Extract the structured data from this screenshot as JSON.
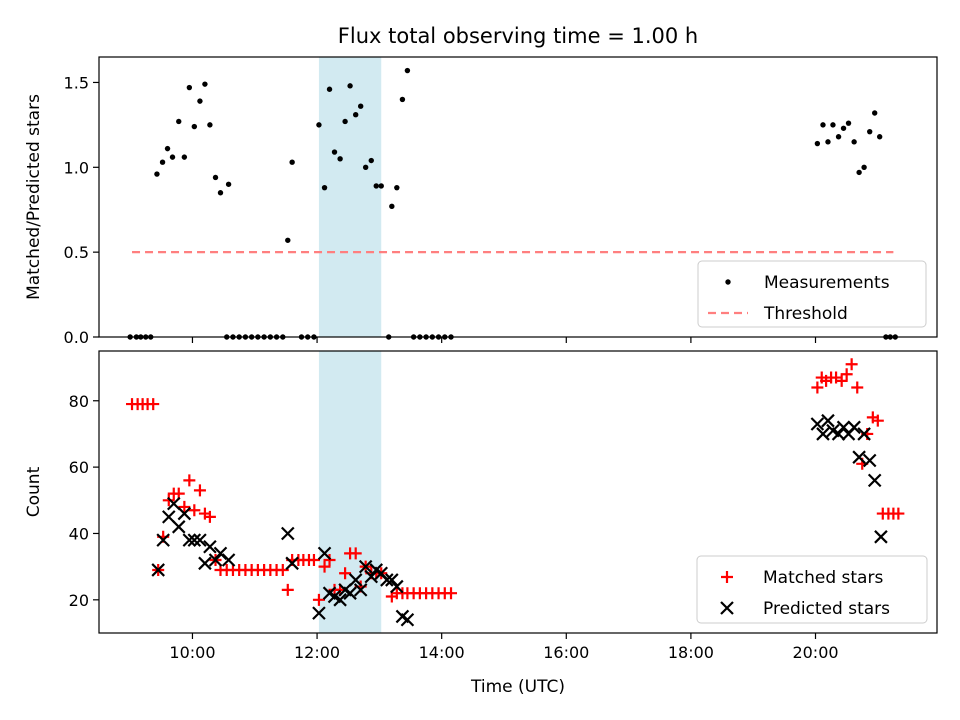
{
  "figure": {
    "title": "Flux total observing time = 1.00 h",
    "xlabel": "Time (UTC)",
    "x_ticks": [
      {
        "h": 10,
        "label": "10:00"
      },
      {
        "h": 12,
        "label": "12:00"
      },
      {
        "h": 14,
        "label": "14:00"
      },
      {
        "h": 16,
        "label": "16:00"
      },
      {
        "h": 18,
        "label": "18:00"
      },
      {
        "h": 20,
        "label": "20:00"
      }
    ],
    "x_range_hours": [
      8.5,
      21.95
    ],
    "highlight_span_hours": [
      12.03,
      13.03
    ],
    "highlight_color": "#add8e6"
  },
  "chart_data": [
    {
      "type": "scatter",
      "ylabel": "Matched/Predicted stars",
      "ylim": [
        0,
        1.65
      ],
      "y_ticks": [
        0.0,
        0.5,
        1.0,
        1.5
      ],
      "y_tick_labels": [
        "0.0",
        "0.5",
        "1.0",
        "1.5"
      ],
      "grid": false,
      "legend_position": "bottom-right",
      "series": [
        {
          "name": "Measurements",
          "marker": "dot",
          "color": "#000000",
          "points": [
            [
              9.0,
              0
            ],
            [
              9.1,
              0
            ],
            [
              9.17,
              0
            ],
            [
              9.25,
              0
            ],
            [
              9.33,
              0
            ],
            [
              9.43,
              0.96
            ],
            [
              9.52,
              1.03
            ],
            [
              9.6,
              1.11
            ],
            [
              9.68,
              1.06
            ],
            [
              9.78,
              1.27
            ],
            [
              9.87,
              1.06
            ],
            [
              9.95,
              1.47
            ],
            [
              10.03,
              1.24
            ],
            [
              10.12,
              1.39
            ],
            [
              10.2,
              1.49
            ],
            [
              10.28,
              1.25
            ],
            [
              10.37,
              0.94
            ],
            [
              10.45,
              0.85
            ],
            [
              10.58,
              0.9
            ],
            [
              10.55,
              0
            ],
            [
              10.65,
              0
            ],
            [
              10.75,
              0
            ],
            [
              10.85,
              0
            ],
            [
              10.95,
              0
            ],
            [
              11.05,
              0
            ],
            [
              11.15,
              0
            ],
            [
              11.25,
              0
            ],
            [
              11.35,
              0
            ],
            [
              11.45,
              0
            ],
            [
              11.53,
              0.57
            ],
            [
              11.6,
              1.03
            ],
            [
              11.75,
              0
            ],
            [
              11.85,
              0
            ],
            [
              11.95,
              0
            ],
            [
              12.03,
              1.25
            ],
            [
              12.12,
              0.88
            ],
            [
              12.2,
              1.46
            ],
            [
              12.28,
              1.09
            ],
            [
              12.37,
              1.05
            ],
            [
              12.45,
              1.27
            ],
            [
              12.53,
              1.48
            ],
            [
              12.62,
              1.31
            ],
            [
              12.7,
              1.36
            ],
            [
              12.78,
              1.0
            ],
            [
              12.87,
              1.04
            ],
            [
              12.95,
              0.89
            ],
            [
              13.03,
              0.89
            ],
            [
              13.15,
              0
            ],
            [
              13.2,
              0.77
            ],
            [
              13.28,
              0.88
            ],
            [
              13.37,
              1.4
            ],
            [
              13.45,
              1.57
            ],
            [
              13.55,
              0
            ],
            [
              13.65,
              0
            ],
            [
              13.75,
              0
            ],
            [
              13.85,
              0
            ],
            [
              13.95,
              0
            ],
            [
              14.05,
              0
            ],
            [
              14.15,
              0
            ],
            [
              20.03,
              1.14
            ],
            [
              20.12,
              1.25
            ],
            [
              20.2,
              1.15
            ],
            [
              20.28,
              1.25
            ],
            [
              20.37,
              1.18
            ],
            [
              20.45,
              1.23
            ],
            [
              20.53,
              1.26
            ],
            [
              20.62,
              1.15
            ],
            [
              20.7,
              0.97
            ],
            [
              20.78,
              1.0
            ],
            [
              20.87,
              1.21
            ],
            [
              20.95,
              1.32
            ],
            [
              21.03,
              1.18
            ],
            [
              21.13,
              0
            ],
            [
              21.2,
              0
            ],
            [
              21.28,
              0
            ]
          ]
        },
        {
          "name": "Threshold",
          "type": "line",
          "style": "dashed",
          "color": "#ff7f7f",
          "x": [
            9.03,
            21.25
          ],
          "y": [
            0.5,
            0.5
          ]
        }
      ]
    },
    {
      "type": "scatter",
      "ylabel": "Count",
      "ylim": [
        10,
        95
      ],
      "y_ticks": [
        20,
        40,
        60,
        80
      ],
      "y_tick_labels": [
        "20",
        "40",
        "60",
        "80"
      ],
      "grid": false,
      "legend_position": "bottom-right",
      "series": [
        {
          "name": "Matched stars",
          "marker": "plus",
          "color": "#ff0000",
          "points": [
            [
              9.03,
              79
            ],
            [
              9.12,
              79
            ],
            [
              9.2,
              79
            ],
            [
              9.28,
              79
            ],
            [
              9.37,
              79
            ],
            [
              9.45,
              29
            ],
            [
              9.53,
              39
            ],
            [
              9.62,
              50
            ],
            [
              9.7,
              52
            ],
            [
              9.78,
              52
            ],
            [
              9.87,
              48
            ],
            [
              9.95,
              56
            ],
            [
              10.03,
              47
            ],
            [
              10.12,
              53
            ],
            [
              10.2,
              46
            ],
            [
              10.28,
              45
            ],
            [
              10.37,
              32
            ],
            [
              10.45,
              29
            ],
            [
              10.55,
              29
            ],
            [
              10.65,
              29
            ],
            [
              10.75,
              29
            ],
            [
              10.85,
              29
            ],
            [
              10.95,
              29
            ],
            [
              11.05,
              29
            ],
            [
              11.15,
              29
            ],
            [
              11.25,
              29
            ],
            [
              11.35,
              29
            ],
            [
              11.45,
              29
            ],
            [
              11.53,
              23
            ],
            [
              11.6,
              32
            ],
            [
              11.7,
              32
            ],
            [
              11.78,
              32
            ],
            [
              11.87,
              32
            ],
            [
              11.95,
              32
            ],
            [
              12.03,
              20
            ],
            [
              12.12,
              30
            ],
            [
              12.2,
              32
            ],
            [
              12.28,
              23
            ],
            [
              12.37,
              23
            ],
            [
              12.45,
              28
            ],
            [
              12.53,
              34
            ],
            [
              12.62,
              34
            ],
            [
              12.7,
              24
            ],
            [
              12.78,
              30
            ],
            [
              12.87,
              28
            ],
            [
              12.95,
              28
            ],
            [
              13.03,
              28
            ],
            [
              13.2,
              21
            ],
            [
              13.28,
              22
            ],
            [
              13.37,
              22
            ],
            [
              13.45,
              22
            ],
            [
              13.55,
              22
            ],
            [
              13.65,
              22
            ],
            [
              13.75,
              22
            ],
            [
              13.85,
              22
            ],
            [
              13.95,
              22
            ],
            [
              14.05,
              22
            ],
            [
              14.15,
              22
            ],
            [
              20.03,
              84
            ],
            [
              20.1,
              87
            ],
            [
              20.17,
              86
            ],
            [
              20.25,
              87
            ],
            [
              20.33,
              87
            ],
            [
              20.42,
              86
            ],
            [
              20.5,
              88
            ],
            [
              20.58,
              91
            ],
            [
              20.67,
              84
            ],
            [
              20.75,
              61
            ],
            [
              20.83,
              70
            ],
            [
              20.92,
              75
            ],
            [
              21.0,
              74
            ],
            [
              21.08,
              46
            ],
            [
              21.17,
              46
            ],
            [
              21.25,
              46
            ],
            [
              21.33,
              46
            ]
          ]
        },
        {
          "name": "Predicted stars",
          "marker": "x",
          "color": "#000000",
          "points": [
            [
              9.45,
              29
            ],
            [
              9.53,
              38
            ],
            [
              9.62,
              45
            ],
            [
              9.7,
              49
            ],
            [
              9.78,
              42
            ],
            [
              9.87,
              46
            ],
            [
              9.95,
              38
            ],
            [
              10.03,
              38
            ],
            [
              10.12,
              38
            ],
            [
              10.2,
              31
            ],
            [
              10.28,
              36
            ],
            [
              10.37,
              32
            ],
            [
              10.45,
              34
            ],
            [
              10.58,
              32
            ],
            [
              11.53,
              40
            ],
            [
              11.6,
              31
            ],
            [
              12.03,
              16
            ],
            [
              12.12,
              34
            ],
            [
              12.2,
              22
            ],
            [
              12.28,
              21
            ],
            [
              12.37,
              20
            ],
            [
              12.45,
              23
            ],
            [
              12.53,
              22
            ],
            [
              12.62,
              26
            ],
            [
              12.7,
              23
            ],
            [
              12.78,
              30
            ],
            [
              12.87,
              27
            ],
            [
              12.95,
              29
            ],
            [
              13.03,
              28
            ],
            [
              13.12,
              26
            ],
            [
              13.2,
              26
            ],
            [
              13.28,
              24
            ],
            [
              13.37,
              15
            ],
            [
              13.45,
              14
            ],
            [
              20.03,
              73
            ],
            [
              20.12,
              70
            ],
            [
              20.2,
              74
            ],
            [
              20.28,
              71
            ],
            [
              20.37,
              70
            ],
            [
              20.45,
              72
            ],
            [
              20.53,
              70
            ],
            [
              20.62,
              72
            ],
            [
              20.7,
              63
            ],
            [
              20.78,
              70
            ],
            [
              20.87,
              62
            ],
            [
              20.95,
              56
            ],
            [
              21.05,
              39
            ]
          ]
        }
      ]
    }
  ]
}
